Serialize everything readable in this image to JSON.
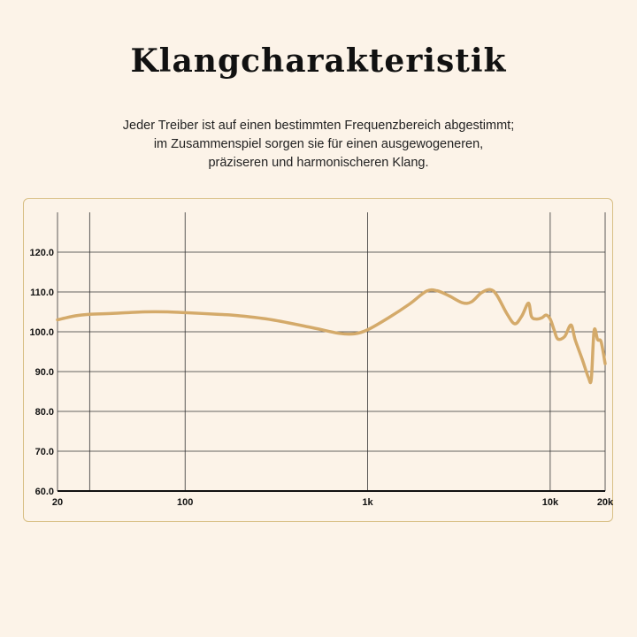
{
  "title": "Klangcharakteristik",
  "subtitle": [
    "Jeder Treiber ist auf einen bestimmten Frequenzbereich abgestimmt;",
    "im Zusammenspiel sorgen sie für einen ausgewogeneren,",
    "präziseren und harmonischeren Klang."
  ],
  "colors": {
    "curve": "#d4aa6a",
    "frame": "#d8bf85",
    "grid": "#333333",
    "background": "#fcf3e8"
  },
  "chart_data": {
    "type": "line",
    "title": "",
    "xlabel": "",
    "ylabel": "",
    "x_scale": "log",
    "xlim": [
      20,
      20000
    ],
    "ylim": [
      60,
      130
    ],
    "grid": true,
    "x_ticks": [
      {
        "value": 20,
        "label": "20"
      },
      {
        "value": 100,
        "label": "100"
      },
      {
        "value": 1000,
        "label": "1k"
      },
      {
        "value": 10000,
        "label": "10k"
      },
      {
        "value": 20000,
        "label": "20k"
      }
    ],
    "x_gridlines": [
      20,
      30,
      100,
      1000,
      10000,
      20000
    ],
    "y_ticks": [
      {
        "value": 60,
        "label": "60.0"
      },
      {
        "value": 70,
        "label": "70.0"
      },
      {
        "value": 80,
        "label": "80.0"
      },
      {
        "value": 90,
        "label": "90.0"
      },
      {
        "value": 100,
        "label": "100.0"
      },
      {
        "value": 110,
        "label": "110.0"
      },
      {
        "value": 120,
        "label": "120.0"
      }
    ],
    "series": [
      {
        "points": [
          [
            20,
            103
          ],
          [
            25,
            104
          ],
          [
            30,
            104.4
          ],
          [
            40,
            104.6
          ],
          [
            60,
            105
          ],
          [
            80,
            105
          ],
          [
            100,
            104.8
          ],
          [
            150,
            104.4
          ],
          [
            200,
            104
          ],
          [
            300,
            103
          ],
          [
            500,
            101
          ],
          [
            700,
            99.6
          ],
          [
            850,
            99.5
          ],
          [
            1000,
            100.5
          ],
          [
            1300,
            103.5
          ],
          [
            1700,
            107
          ],
          [
            2100,
            110.2
          ],
          [
            2400,
            110.3
          ],
          [
            2800,
            109
          ],
          [
            3300,
            107.3
          ],
          [
            3700,
            107.5
          ],
          [
            4200,
            109.8
          ],
          [
            4700,
            110.6
          ],
          [
            5100,
            109.2
          ],
          [
            5800,
            104.5
          ],
          [
            6400,
            102
          ],
          [
            7000,
            104
          ],
          [
            7600,
            107.2
          ],
          [
            7900,
            103.8
          ],
          [
            8400,
            103.2
          ],
          [
            9000,
            103.5
          ],
          [
            9500,
            104.2
          ],
          [
            10000,
            103.2
          ],
          [
            10500,
            100.5
          ],
          [
            11000,
            98.2
          ],
          [
            12000,
            98.8
          ],
          [
            13000,
            101.7
          ],
          [
            13700,
            98
          ],
          [
            15000,
            93
          ],
          [
            16200,
            88.5
          ],
          [
            16800,
            88.2
          ],
          [
            17400,
            100.3
          ],
          [
            18200,
            98
          ],
          [
            19000,
            97.5
          ],
          [
            20000,
            92
          ]
        ]
      }
    ]
  }
}
